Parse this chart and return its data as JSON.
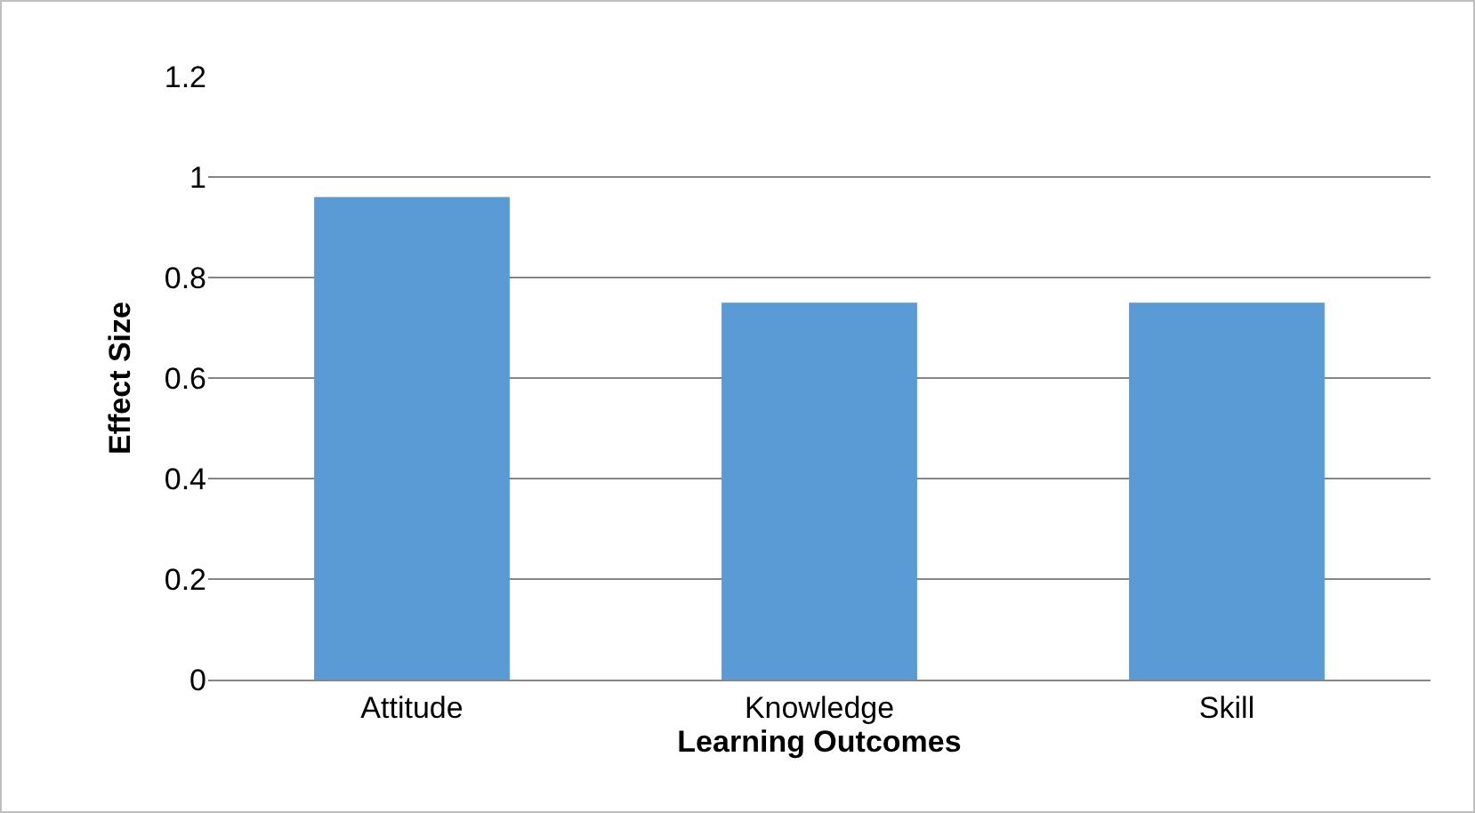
{
  "chart_data": {
    "type": "bar",
    "categories": [
      "Attitude",
      "Knowledge",
      "Skill"
    ],
    "values": [
      0.96,
      0.75,
      0.75
    ],
    "color": "#5b9bd5",
    "xlabel": "Learning Outcomes",
    "ylabel": "Effect Size",
    "ylim": [
      0,
      1.2
    ],
    "yticks": [
      0,
      0.2,
      0.4,
      0.6,
      0.8,
      1,
      1.2
    ],
    "grid": "y",
    "legend": false
  }
}
